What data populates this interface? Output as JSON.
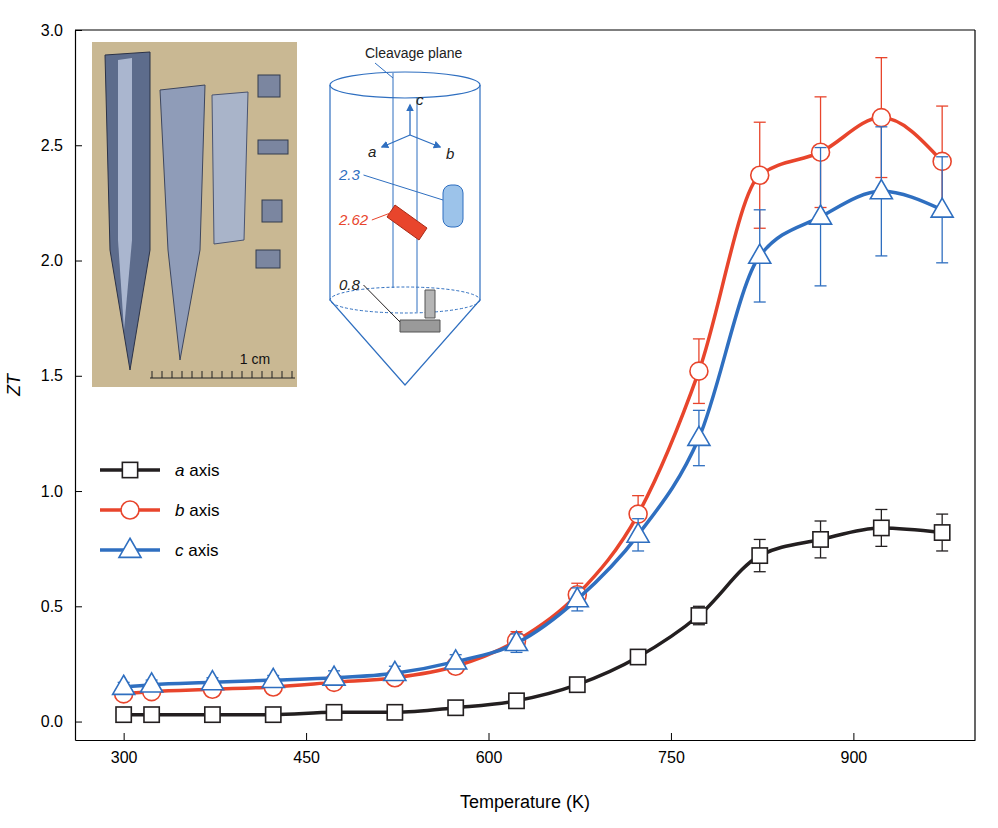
{
  "chart_data": {
    "type": "line",
    "x_label": "Temperature (K)",
    "y_label": "ZT",
    "x": [
      300,
      323,
      373,
      423,
      473,
      523,
      573,
      623,
      673,
      723,
      773,
      823,
      873,
      923,
      973
    ],
    "xlim": [
      260,
      1000
    ],
    "xticks": [
      300,
      450,
      600,
      750,
      900
    ],
    "ylim": [
      -0.08,
      3.0
    ],
    "yticks": [
      {
        "value": 0,
        "label": "0.0"
      },
      {
        "value": 0.5,
        "label": "0.5"
      },
      {
        "value": 1,
        "label": "1.0"
      },
      {
        "value": 1.5,
        "label": "1.5"
      },
      {
        "value": 2,
        "label": "2.0"
      },
      {
        "value": 2.5,
        "label": "2.5"
      },
      {
        "value": 3,
        "label": "3.0"
      }
    ],
    "legend": "lower left",
    "series": [
      {
        "name": "a axis",
        "color": "#231f20",
        "marker": "square",
        "values": [
          0.03,
          0.03,
          0.03,
          0.03,
          0.04,
          0.04,
          0.06,
          0.09,
          0.16,
          0.28,
          0.46,
          0.72,
          0.79,
          0.84,
          0.82
        ],
        "errors": [
          0.02,
          0.02,
          0.02,
          0.02,
          0.02,
          0.02,
          0.02,
          0.02,
          0.03,
          0.03,
          0.04,
          0.07,
          0.08,
          0.08,
          0.08
        ]
      },
      {
        "name": "b axis",
        "color": "#e8452c",
        "marker": "circle",
        "values": [
          0.12,
          0.13,
          0.14,
          0.15,
          0.17,
          0.19,
          0.24,
          0.35,
          0.55,
          0.9,
          1.52,
          2.37,
          2.47,
          2.62,
          2.43
        ],
        "errors": [
          0.02,
          0.02,
          0.02,
          0.02,
          0.03,
          0.03,
          0.03,
          0.04,
          0.05,
          0.08,
          0.14,
          0.23,
          0.24,
          0.26,
          0.24
        ]
      },
      {
        "name": "c axis",
        "color": "#2f6fc0",
        "marker": "triangle",
        "values": [
          0.15,
          0.16,
          0.17,
          0.18,
          0.19,
          0.21,
          0.26,
          0.34,
          0.53,
          0.81,
          1.23,
          2.02,
          2.19,
          2.3,
          2.22
        ],
        "errors": [
          0.02,
          0.02,
          0.02,
          0.02,
          0.03,
          0.03,
          0.03,
          0.04,
          0.05,
          0.07,
          0.12,
          0.2,
          0.3,
          0.28,
          0.23
        ]
      }
    ],
    "inset": {
      "scale_label": "1 cm",
      "cleavage_label": "Cleavage plane",
      "axis_labels": [
        "a",
        "b",
        "c"
      ],
      "zt_labels": [
        2.3,
        2.62,
        0.8
      ]
    }
  }
}
